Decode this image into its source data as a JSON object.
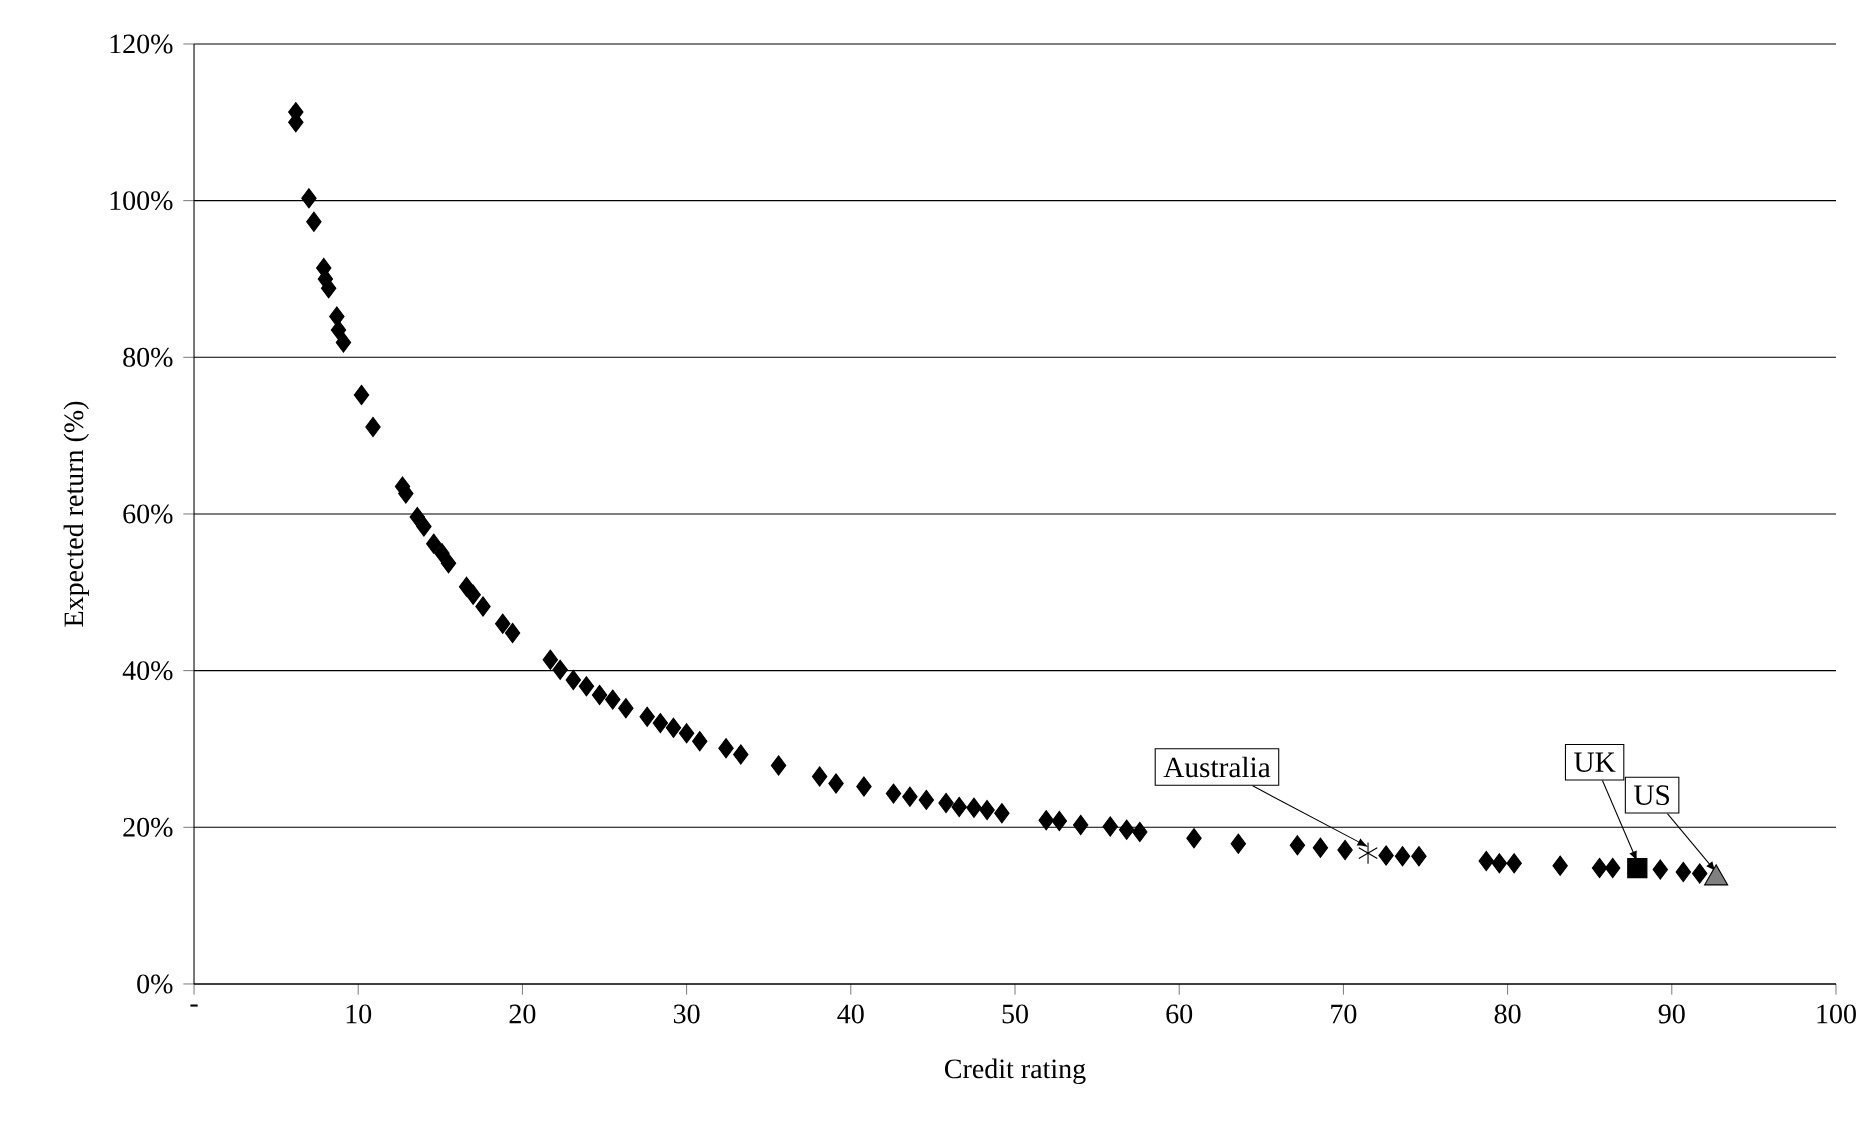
{
  "chart_data": {
    "type": "scatter",
    "xlabel": "Credit rating",
    "ylabel": "Expected return (%)",
    "xlim": [
      0,
      100
    ],
    "ylim": [
      0,
      120
    ],
    "xticks": [
      {
        "value": 0,
        "label": "-"
      },
      10,
      20,
      30,
      40,
      50,
      60,
      70,
      80,
      90,
      100
    ],
    "yticks": [
      {
        "value": 0,
        "label": "0%"
      },
      {
        "value": 20,
        "label": "20%"
      },
      {
        "value": 40,
        "label": "40%"
      },
      {
        "value": 60,
        "label": "60%"
      },
      {
        "value": 80,
        "label": "80%"
      },
      {
        "value": 100,
        "label": "100%"
      },
      {
        "value": 120,
        "label": "120%"
      }
    ],
    "grid": "y",
    "series": [
      {
        "color": "#000000",
        "marker": "diamond",
        "x": [
          6.2,
          6.2,
          7.0,
          7.3,
          7.9,
          8.0,
          8.2,
          8.7,
          8.8,
          9.1,
          10.2,
          10.9,
          12.7,
          12.9,
          13.6,
          14.0,
          14.6,
          15.1,
          15.5,
          16.6,
          17.0,
          17.6,
          18.8,
          19.4,
          21.7,
          22.3,
          23.1,
          23.9,
          24.7,
          25.5,
          26.3,
          27.6,
          28.4,
          29.2,
          30.0,
          30.8,
          32.4,
          33.3,
          35.6,
          38.1,
          39.1,
          40.8,
          42.6,
          43.6,
          44.6,
          45.8,
          46.6,
          47.5,
          48.3,
          49.2,
          51.9,
          52.7,
          54.0,
          55.8,
          56.8,
          57.6,
          60.9,
          63.6,
          67.2,
          68.6,
          70.1,
          72.6,
          73.6,
          74.6,
          78.7,
          79.5,
          80.4,
          83.2,
          85.6,
          86.4,
          89.3,
          90.7,
          91.7
        ],
        "values": [
          111.3,
          110.0,
          100.3,
          97.3,
          91.4,
          90.0,
          88.8,
          85.2,
          83.5,
          81.9,
          75.2,
          71.1,
          63.5,
          62.6,
          59.6,
          58.4,
          56.2,
          55.0,
          53.7,
          50.7,
          49.7,
          48.2,
          46.0,
          44.8,
          41.4,
          40.1,
          38.8,
          38.0,
          36.9,
          36.3,
          35.2,
          34.1,
          33.3,
          32.7,
          32.0,
          31.0,
          30.1,
          29.3,
          27.9,
          26.5,
          25.6,
          25.2,
          24.3,
          23.9,
          23.5,
          23.1,
          22.6,
          22.5,
          22.2,
          21.8,
          20.9,
          20.8,
          20.3,
          20.1,
          19.7,
          19.4,
          18.6,
          17.9,
          17.7,
          17.4,
          17.1,
          16.4,
          16.3,
          16.3,
          15.7,
          15.4,
          15.4,
          15.1,
          14.8,
          14.8,
          14.6,
          14.3,
          14.1
        ]
      },
      {
        "color": "#000000",
        "marker": "cross",
        "x": [
          71.5
        ],
        "values": [
          16.7
        ]
      },
      {
        "color": "#000000",
        "marker": "square",
        "x": [
          87.9
        ],
        "values": [
          14.8
        ]
      },
      {
        "color": "#808080",
        "marker": "triangle",
        "x": [
          92.7
        ],
        "values": [
          13.5
        ]
      }
    ],
    "annotations": [
      {
        "text": "Australia",
        "x": 71.5,
        "y": 16.7
      },
      {
        "text": "UK",
        "x": 87.9,
        "y": 14.8
      },
      {
        "text": "US",
        "x": 92.7,
        "y": 13.5
      }
    ]
  }
}
